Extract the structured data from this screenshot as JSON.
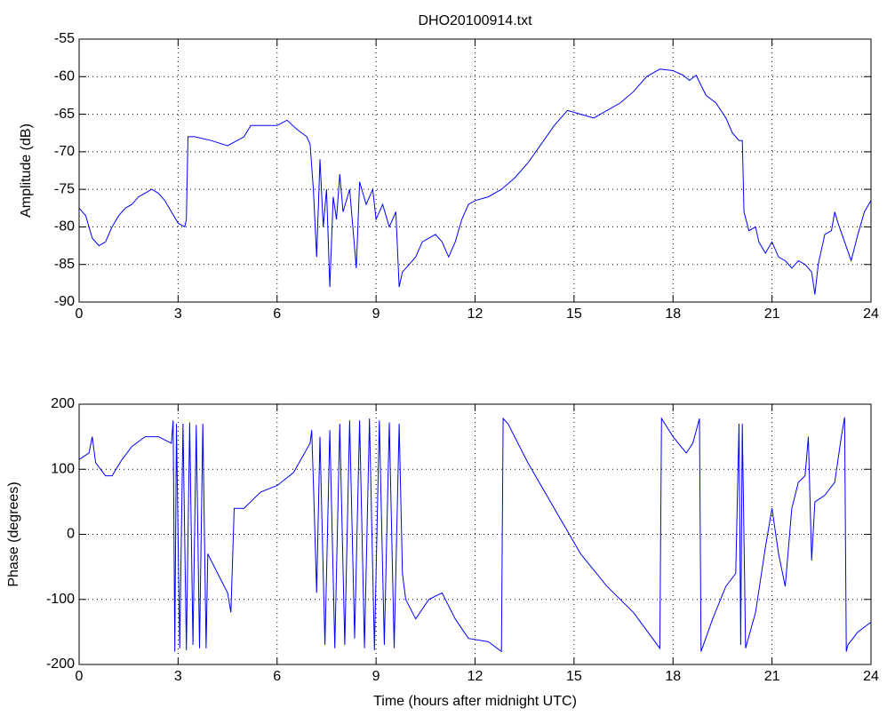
{
  "chart_data": [
    {
      "type": "line",
      "title": "DHO20100914.txt",
      "ylabel": "Amplitude (dB)",
      "grid": true,
      "color": "#0000ff",
      "xlim": [
        0,
        24
      ],
      "xticks": [
        0,
        3,
        6,
        9,
        12,
        15,
        18,
        21,
        24
      ],
      "ylim": [
        -90,
        -55
      ],
      "yticks": [
        -90,
        -85,
        -80,
        -75,
        -70,
        -65,
        -60,
        -55
      ],
      "x": [
        0,
        0.2,
        0.4,
        0.6,
        0.8,
        1.0,
        1.2,
        1.4,
        1.6,
        1.8,
        2.0,
        2.2,
        2.4,
        2.6,
        2.8,
        3.0,
        3.2,
        3.25,
        3.3,
        3.5,
        4.0,
        4.5,
        5.0,
        5.2,
        5.5,
        6.0,
        6.3,
        6.6,
        6.9,
        7.0,
        7.1,
        7.2,
        7.3,
        7.4,
        7.5,
        7.6,
        7.7,
        7.8,
        7.9,
        8.0,
        8.2,
        8.4,
        8.5,
        8.7,
        8.9,
        9.0,
        9.2,
        9.4,
        9.6,
        9.7,
        9.8,
        10.0,
        10.2,
        10.4,
        10.6,
        10.8,
        11.0,
        11.2,
        11.4,
        11.6,
        11.8,
        12.0,
        12.4,
        12.8,
        13.2,
        13.6,
        14.0,
        14.4,
        14.8,
        15.2,
        15.6,
        16.0,
        16.4,
        16.8,
        17.2,
        17.6,
        18.0,
        18.3,
        18.5,
        18.7,
        19.0,
        19.3,
        19.6,
        19.8,
        20.0,
        20.1,
        20.15,
        20.3,
        20.5,
        20.6,
        20.8,
        21.0,
        21.2,
        21.4,
        21.6,
        21.8,
        22.0,
        22.2,
        22.3,
        22.4,
        22.6,
        22.8,
        22.9,
        23.0,
        23.2,
        23.4,
        23.6,
        23.8,
        24
      ],
      "series": [
        {
          "name": "Amplitude",
          "color": "#0000ff",
          "values": [
            -77.5,
            -78.5,
            -81.5,
            -82.5,
            -82,
            -80,
            -78.5,
            -77.5,
            -77,
            -76,
            -75.5,
            -75,
            -75.5,
            -76.5,
            -78,
            -79.5,
            -80,
            -79,
            -68,
            -68,
            -68.5,
            -69.2,
            -68,
            -66.5,
            -66.5,
            -66.5,
            -65.8,
            -67,
            -68,
            -69,
            -75,
            -84,
            -71,
            -80,
            -75,
            -88,
            -76,
            -79,
            -73,
            -78,
            -75,
            -85.5,
            -74,
            -77,
            -75,
            -79,
            -77,
            -80,
            -78,
            -88,
            -86,
            -85,
            -84,
            -82,
            -81.5,
            -81,
            -82,
            -84,
            -82,
            -79,
            -77,
            -76.5,
            -76,
            -75,
            -73.5,
            -71.5,
            -69,
            -66.5,
            -64.5,
            -65,
            -65.5,
            -64.5,
            -63.5,
            -62,
            -60,
            -59,
            -59.2,
            -59.8,
            -60.5,
            -59.8,
            -62.5,
            -63.5,
            -65.5,
            -67.5,
            -68.5,
            -68.5,
            -78,
            -80.5,
            -80,
            -82,
            -83.5,
            -82,
            -84,
            -84.5,
            -85.5,
            -84.5,
            -85,
            -86,
            -89,
            -85,
            -81,
            -80.5,
            -78,
            -79.5,
            -82,
            -84.5,
            -81,
            -78,
            -76.5
          ]
        }
      ]
    },
    {
      "type": "line",
      "ylabel": "Phase (degrees)",
      "xlabel": "Time (hours after midnight UTC)",
      "grid": true,
      "color": "#0000ff",
      "xlim": [
        0,
        24
      ],
      "xticks": [
        0,
        3,
        6,
        9,
        12,
        15,
        18,
        21,
        24
      ],
      "ylim": [
        -200,
        200
      ],
      "yticks": [
        -200,
        -100,
        0,
        100,
        200
      ],
      "x": [
        0,
        0.3,
        0.4,
        0.5,
        0.8,
        1.0,
        1.3,
        1.6,
        2.0,
        2.4,
        2.8,
        2.85,
        2.9,
        2.95,
        3.05,
        3.15,
        3.25,
        3.35,
        3.45,
        3.55,
        3.65,
        3.75,
        3.85,
        3.9,
        4.2,
        4.5,
        4.6,
        4.7,
        5.0,
        5.5,
        6.0,
        6.5,
        7.0,
        7.05,
        7.1,
        7.2,
        7.3,
        7.45,
        7.6,
        7.75,
        7.9,
        8.05,
        8.2,
        8.35,
        8.5,
        8.65,
        8.8,
        8.95,
        9.1,
        9.25,
        9.4,
        9.55,
        9.7,
        9.8,
        9.9,
        10.2,
        10.6,
        11.0,
        11.4,
        11.8,
        12.4,
        12.8,
        12.85,
        13.0,
        13.6,
        14.4,
        15.2,
        16.0,
        16.8,
        17.6,
        17.65,
        18.0,
        18.4,
        18.6,
        18.8,
        18.85,
        19.2,
        19.6,
        19.9,
        20.0,
        20.05,
        20.1,
        20.2,
        20.5,
        20.8,
        21.0,
        21.2,
        21.4,
        21.6,
        21.8,
        22.0,
        22.1,
        22.2,
        22.3,
        22.6,
        22.9,
        23.1,
        23.2,
        23.25,
        23.3,
        23.6,
        24
      ],
      "series": [
        {
          "name": "Phase",
          "color": "#0000ff",
          "values": [
            115,
            125,
            150,
            110,
            90,
            90,
            115,
            135,
            150,
            150,
            140,
            175,
            -180,
            170,
            -175,
            170,
            -178,
            172,
            -170,
            168,
            -175,
            170,
            -175,
            -30,
            -60,
            -90,
            -120,
            40,
            40,
            65,
            75,
            95,
            140,
            160,
            80,
            -90,
            150,
            -170,
            160,
            -175,
            170,
            -170,
            175,
            -160,
            175,
            -175,
            178,
            -178,
            175,
            -170,
            172,
            -175,
            170,
            -60,
            -100,
            -130,
            -100,
            -90,
            -130,
            -160,
            -165,
            -180,
            178,
            170,
            110,
            40,
            -30,
            -80,
            -120,
            -175,
            178,
            150,
            125,
            140,
            178,
            -180,
            -130,
            -80,
            -60,
            170,
            -170,
            170,
            -175,
            -120,
            -20,
            40,
            -30,
            -80,
            40,
            80,
            90,
            150,
            -40,
            50,
            60,
            80,
            150,
            180,
            -180,
            -170,
            -150,
            -135
          ]
        }
      ]
    }
  ]
}
